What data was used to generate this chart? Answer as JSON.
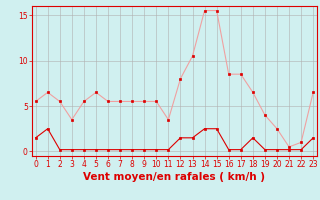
{
  "x": [
    0,
    1,
    2,
    3,
    4,
    5,
    6,
    7,
    8,
    9,
    10,
    11,
    12,
    13,
    14,
    15,
    16,
    17,
    18,
    19,
    20,
    21,
    22,
    23
  ],
  "y_rafales": [
    5.5,
    6.5,
    5.5,
    3.5,
    5.5,
    6.5,
    5.5,
    5.5,
    5.5,
    5.5,
    5.5,
    3.5,
    8.0,
    10.5,
    15.5,
    15.5,
    8.5,
    8.5,
    6.5,
    4.0,
    2.5,
    0.5,
    1.0,
    6.5
  ],
  "y_moyen": [
    1.5,
    2.5,
    0.2,
    0.2,
    0.2,
    0.2,
    0.2,
    0.2,
    0.2,
    0.2,
    0.2,
    0.2,
    1.5,
    1.5,
    2.5,
    2.5,
    0.2,
    0.2,
    1.5,
    0.2,
    0.2,
    0.2,
    0.2,
    1.5
  ],
  "line_color_rafales": "#f0a0a0",
  "line_color_moyen": "#dd0000",
  "marker_color": "#dd0000",
  "bg_color": "#d0f0f0",
  "grid_color": "#b0b0b0",
  "axis_color": "#dd0000",
  "xlabel": "Vent moyen/en rafales ( km/h )",
  "ylabel_ticks": [
    0,
    5,
    10,
    15
  ],
  "xlim": [
    -0.3,
    23.3
  ],
  "ylim": [
    -0.5,
    16
  ],
  "xticks": [
    0,
    1,
    2,
    3,
    4,
    5,
    6,
    7,
    8,
    9,
    10,
    11,
    12,
    13,
    14,
    15,
    16,
    17,
    18,
    19,
    20,
    21,
    22,
    23
  ],
  "tick_fontsize": 5.5,
  "label_fontsize": 7.5
}
